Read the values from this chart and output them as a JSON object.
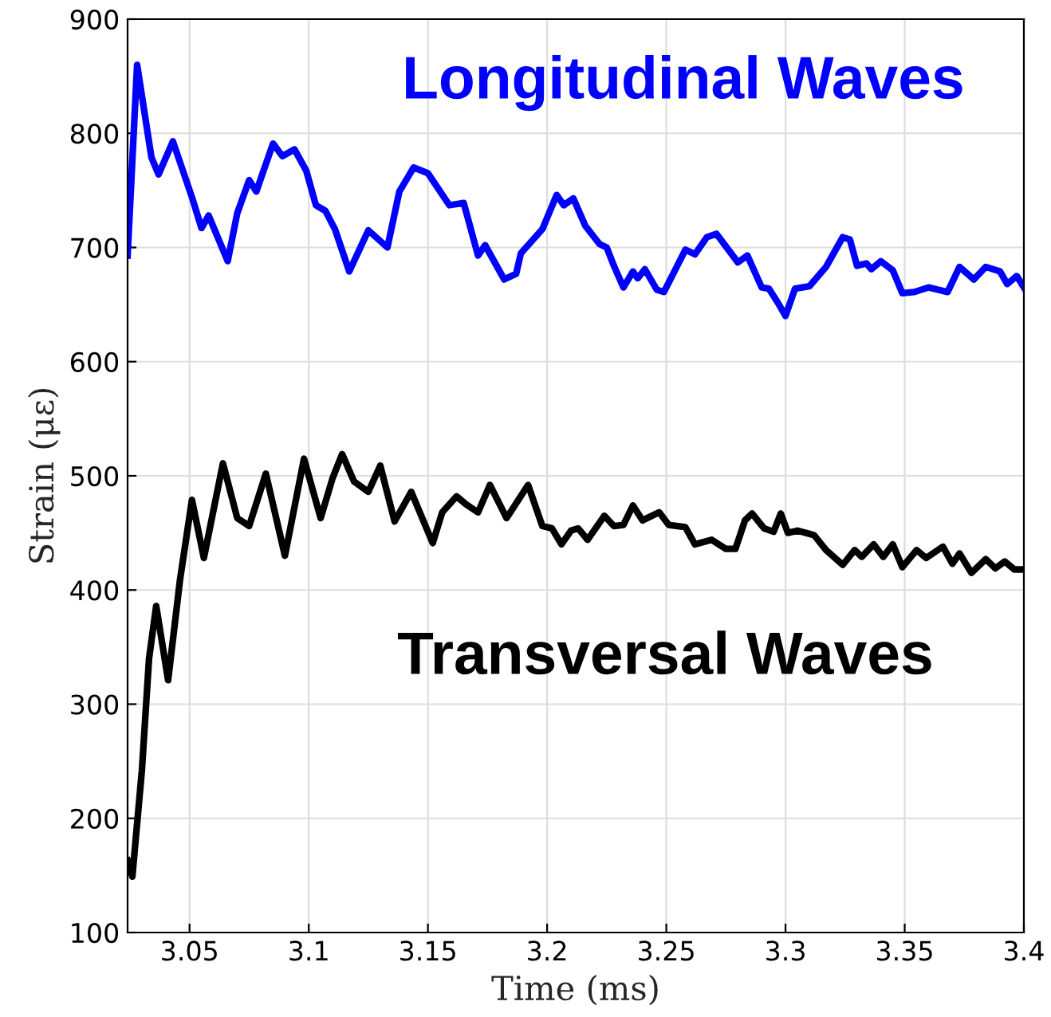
{
  "chart_data": {
    "type": "line",
    "xlabel": "Time (ms)",
    "ylabel": "Strain (με)",
    "xlim": [
      3.024,
      3.4
    ],
    "ylim": [
      100,
      900
    ],
    "xticks": [
      3.05,
      3.1,
      3.15,
      3.2,
      3.25,
      3.3,
      3.35,
      3.4
    ],
    "yticks": [
      100,
      200,
      300,
      400,
      500,
      600,
      700,
      800,
      900
    ],
    "grid": true,
    "legend": false,
    "line_style": "solid",
    "marker": "none",
    "series": [
      {
        "name": "Longitudinal Waves",
        "color": "#0000ff",
        "x": [
          3.024,
          3.028,
          3.034,
          3.037,
          3.043,
          3.051,
          3.055,
          3.058,
          3.066,
          3.07,
          3.075,
          3.078,
          3.085,
          3.089,
          3.094,
          3.099,
          3.103,
          3.107,
          3.111,
          3.117,
          3.125,
          3.133,
          3.138,
          3.144,
          3.15,
          3.159,
          3.165,
          3.171,
          3.174,
          3.182,
          3.187,
          3.189,
          3.198,
          3.204,
          3.207,
          3.211,
          3.216,
          3.222,
          3.225,
          3.228,
          3.232,
          3.236,
          3.238,
          3.241,
          3.246,
          3.249,
          3.258,
          3.262,
          3.267,
          3.271,
          3.28,
          3.284,
          3.29,
          3.293,
          3.297,
          3.3,
          3.304,
          3.31,
          3.317,
          3.324,
          3.327,
          3.33,
          3.334,
          3.336,
          3.34,
          3.345,
          3.349,
          3.354,
          3.36,
          3.364,
          3.368,
          3.373,
          3.379,
          3.384,
          3.39,
          3.393,
          3.397,
          3.4
        ],
        "values": [
          693,
          860,
          779,
          764,
          793,
          744,
          717,
          728,
          688,
          730,
          759,
          749,
          791,
          780,
          786,
          767,
          737,
          732,
          716,
          679,
          715,
          700,
          749,
          770,
          765,
          737,
          739,
          693,
          702,
          672,
          677,
          695,
          716,
          746,
          737,
          743,
          719,
          703,
          700,
          684,
          665,
          679,
          673,
          681,
          663,
          661,
          698,
          694,
          709,
          712,
          687,
          693,
          665,
          664,
          651,
          640,
          664,
          666,
          683,
          709,
          707,
          684,
          686,
          681,
          688,
          680,
          660,
          661,
          665,
          663,
          661,
          683,
          672,
          683,
          679,
          668,
          675,
          665
        ]
      },
      {
        "name": "Transversal Waves",
        "color": "#000000",
        "x": [
          3.024,
          3.026,
          3.03,
          3.033,
          3.036,
          3.041,
          3.046,
          3.051,
          3.056,
          3.064,
          3.07,
          3.075,
          3.082,
          3.09,
          3.098,
          3.105,
          3.11,
          3.114,
          3.119,
          3.125,
          3.13,
          3.136,
          3.143,
          3.152,
          3.156,
          3.162,
          3.166,
          3.171,
          3.176,
          3.183,
          3.192,
          3.198,
          3.202,
          3.206,
          3.21,
          3.213,
          3.217,
          3.224,
          3.228,
          3.232,
          3.236,
          3.24,
          3.247,
          3.251,
          3.258,
          3.262,
          3.269,
          3.275,
          3.279,
          3.283,
          3.286,
          3.291,
          3.295,
          3.298,
          3.301,
          3.305,
          3.312,
          3.317,
          3.324,
          3.329,
          3.332,
          3.337,
          3.341,
          3.345,
          3.349,
          3.355,
          3.359,
          3.366,
          3.37,
          3.373,
          3.378,
          3.384,
          3.388,
          3.392,
          3.396,
          3.4
        ],
        "values": [
          163,
          149,
          242,
          340,
          386,
          321,
          409,
          479,
          428,
          511,
          463,
          456,
          502,
          430,
          515,
          463,
          498,
          519,
          495,
          486,
          509,
          460,
          486,
          441,
          468,
          482,
          475,
          468,
          492,
          463,
          492,
          456,
          454,
          440,
          452,
          454,
          444,
          465,
          456,
          457,
          474,
          461,
          468,
          457,
          455,
          440,
          444,
          436,
          436,
          461,
          467,
          454,
          451,
          467,
          450,
          452,
          448,
          435,
          422,
          435,
          429,
          440,
          429,
          440,
          420,
          435,
          428,
          438,
          423,
          432,
          415,
          427,
          419,
          425,
          418,
          418
        ]
      }
    ]
  }
}
